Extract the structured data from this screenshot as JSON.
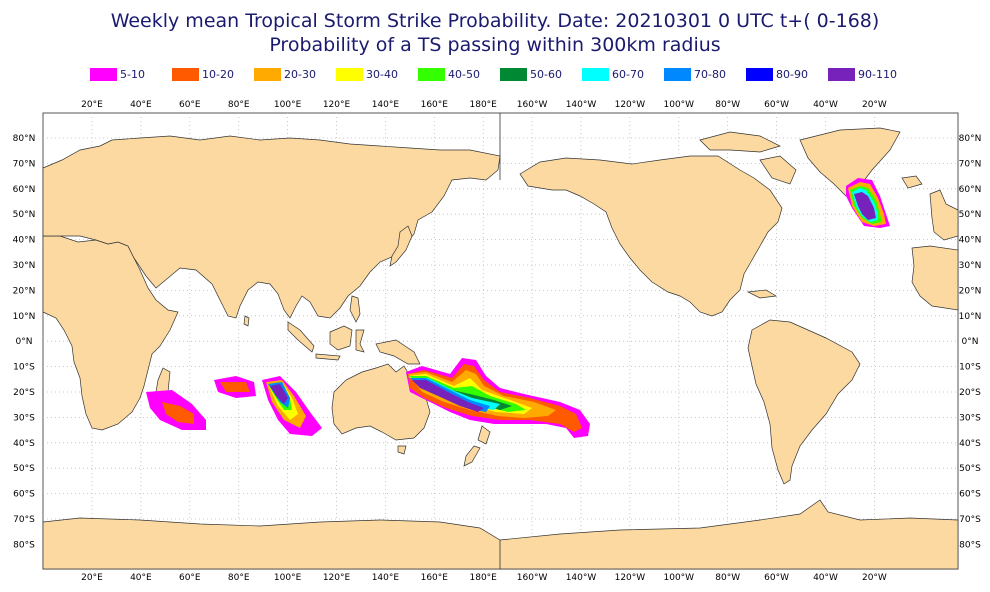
{
  "title_line1": "Weekly mean Tropical Storm Strike Probability. Date: 20210301  0 UTC    t+(  0-168)",
  "title_line2": "Probability of a TS passing within  300km radius",
  "legend": [
    {
      "label": "5-10",
      "color": "#ff00ff"
    },
    {
      "label": "10-20",
      "color": "#ff5a00"
    },
    {
      "label": "20-30",
      "color": "#ffaa00"
    },
    {
      "label": "30-40",
      "color": "#ffff00"
    },
    {
      "label": "40-50",
      "color": "#33ff00"
    },
    {
      "label": "50-60",
      "color": "#008833"
    },
    {
      "label": "60-70",
      "color": "#00ffff"
    },
    {
      "label": "70-80",
      "color": "#0088ff"
    },
    {
      "label": "80-90",
      "color": "#0000ff"
    },
    {
      "label": "90-110",
      "color": "#7722bb"
    }
  ],
  "lon_labels": [
    "20°E",
    "40°E",
    "60°E",
    "80°E",
    "100°E",
    "120°E",
    "140°E",
    "160°E",
    "180°E",
    "160°W",
    "140°W",
    "120°W",
    "100°W",
    "80°W",
    "60°W",
    "40°W",
    "20°W"
  ],
  "lat_labels": [
    "80°N",
    "70°N",
    "60°N",
    "50°N",
    "40°N",
    "30°N",
    "20°N",
    "10°N",
    "0°N",
    "10°S",
    "20°S",
    "30°S",
    "40°S",
    "50°S",
    "60°S",
    "70°S",
    "80°S"
  ],
  "colors": {
    "land": "#fcd9a0",
    "coast": "#333333",
    "grid": "#bbbbbb",
    "frame": "#555555"
  }
}
